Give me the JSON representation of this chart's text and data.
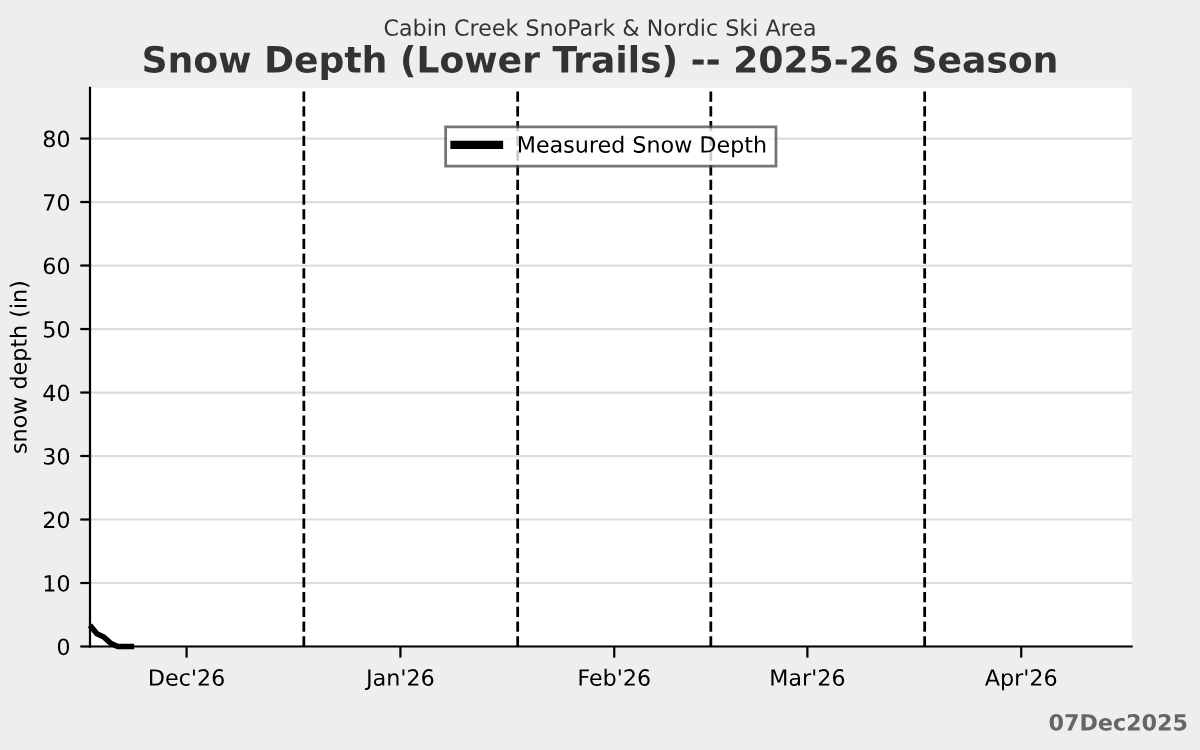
{
  "chart_data": {
    "type": "line",
    "title": "Snow Depth (Lower Trails) -- 2025-26 Season",
    "subtitle": "Cabin Creek SnoPark & Nordic Ski Area",
    "ylabel": "snow depth (in)",
    "annotations": [
      "07Dec2025"
    ],
    "x": [
      "2025-12-01T06:00",
      "2025-12-02T00:00",
      "2025-12-03T00:00",
      "2025-12-04T00:00",
      "2025-12-05T00:00",
      "2025-12-07T00:00"
    ],
    "series": [
      {
        "name": "Measured Snow Depth",
        "color": "#000000",
        "values": [
          3,
          2,
          1.5,
          0.5,
          0,
          0
        ]
      }
    ],
    "xlim": [
      "2025-12-01",
      "2026-05-01"
    ],
    "xticks": [
      {
        "value": "2025-12-15",
        "label": "Dec'26"
      },
      {
        "value": "2026-01-15",
        "label": "Jan'26"
      },
      {
        "value": "2026-02-15",
        "label": "Feb'26"
      },
      {
        "value": "2026-03-15",
        "label": "Mar'26"
      },
      {
        "value": "2026-04-15",
        "label": "Apr'26"
      }
    ],
    "ylim": [
      0,
      88
    ],
    "yticks": [
      0,
      10,
      20,
      30,
      40,
      50,
      60,
      70,
      80
    ],
    "ref_lines": [
      {
        "axis": "x",
        "value": "2026-01-01",
        "label": null,
        "color": "#000000",
        "line_style": "dashed"
      },
      {
        "axis": "x",
        "value": "2026-02-01",
        "label": null,
        "color": "#000000",
        "line_style": "dashed"
      },
      {
        "axis": "x",
        "value": "2026-03-01",
        "label": null,
        "color": "#000000",
        "line_style": "dashed"
      },
      {
        "axis": "x",
        "value": "2026-04-01",
        "label": null,
        "color": "#000000",
        "line_style": "dashed"
      }
    ],
    "grid": "y",
    "legend": "top",
    "line_style": "solid"
  }
}
